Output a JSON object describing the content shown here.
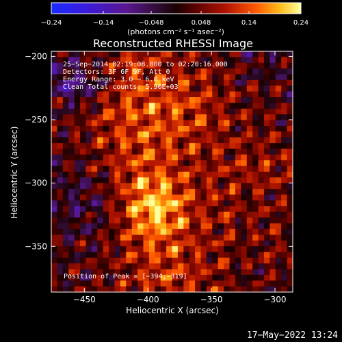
{
  "chart_data": {
    "type": "heatmap",
    "title": "Reconstructed RHESSI Image",
    "xlabel": "Heliocentric X (arcsec)",
    "ylabel": "Heliocentric Y (arcsec)",
    "colorbar_label": "(photons cm⁻² s⁻¹ asec⁻²)",
    "colorbar_ticks": [
      "−0.24",
      "−0.14",
      "−0.048",
      "0.048",
      "0.14",
      "0.24"
    ],
    "colorbar_range": [
      -0.24,
      0.24
    ],
    "x_ticks": [
      "−450",
      "−400",
      "−350",
      "−300"
    ],
    "y_ticks": [
      "−200",
      "−250",
      "−300",
      "−350"
    ],
    "xlim": [
      -476,
      -286
    ],
    "ylim": [
      -386,
      -196
    ],
    "annotations": [
      "25−Sep−2014 02:19:08.000 to 02:20:16.000",
      "Detectors: 3F 6F 9F, Att 0",
      "Energy Range: 3.0 − 6.0 keV",
      "Clean     Total counts: 5.90E+03"
    ],
    "peak_label": "Position of Peak = [−394,−319]",
    "peak_position": [
      -394,
      -319
    ],
    "timestamp": "17−May−2022 13:24",
    "grid": false
  }
}
